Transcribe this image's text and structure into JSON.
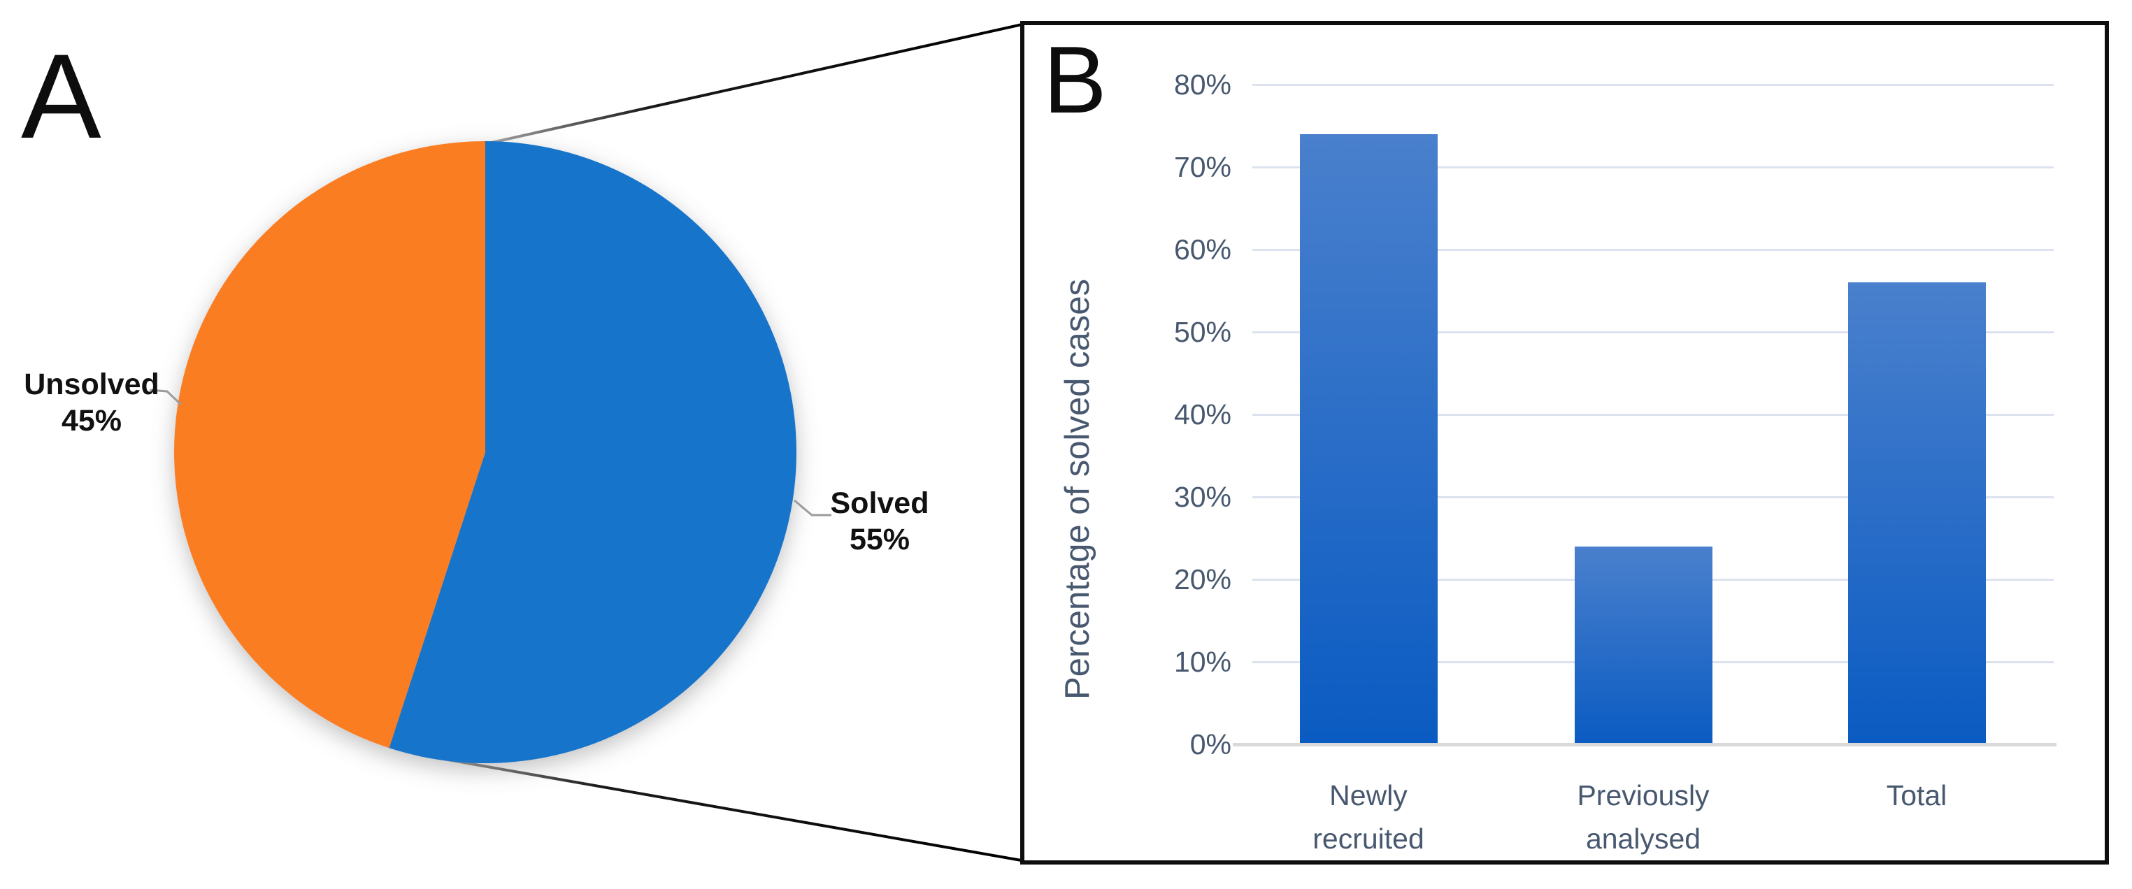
{
  "panelA": {
    "label": "A"
  },
  "panelB": {
    "label": "B"
  },
  "chart_data": [
    {
      "panel": "A",
      "type": "pie",
      "title": "",
      "start_angle": "12-oclock",
      "direction": "clockwise",
      "slices": [
        {
          "label": "Solved",
          "value": 55,
          "display": "55%",
          "color": "#1874CA"
        },
        {
          "label": "Unsolved",
          "value": 45,
          "display": "45%",
          "color": "#FB7D24"
        }
      ],
      "callout_text_color": "#111111",
      "leader_line_color": "#9C9C9C"
    },
    {
      "panel": "B",
      "type": "bar",
      "title": "",
      "categories": [
        "Newly recruited",
        "Previously analysed",
        "Total"
      ],
      "category_lines": [
        [
          "Newly",
          "recruited"
        ],
        [
          "Previously",
          "analysed"
        ],
        [
          "Total"
        ]
      ],
      "values": [
        74,
        24,
        56
      ],
      "unit": "%",
      "xlabel": "",
      "ylabel": "Percentage of solved cases",
      "ylim": [
        0,
        80
      ],
      "ytick_step": 10,
      "ytick_labels": [
        "0%",
        "10%",
        "20%",
        "30%",
        "40%",
        "50%",
        "60%",
        "70%",
        "80%"
      ],
      "grid": true,
      "legend": "none",
      "bar_gradient_top": "#4A80CD",
      "bar_gradient_bottom": "#0A5BC2",
      "gridline_color": "#DCE3EF",
      "axis_line_color": "#D9D9D9",
      "axis_text_color": "#47586F"
    }
  ]
}
